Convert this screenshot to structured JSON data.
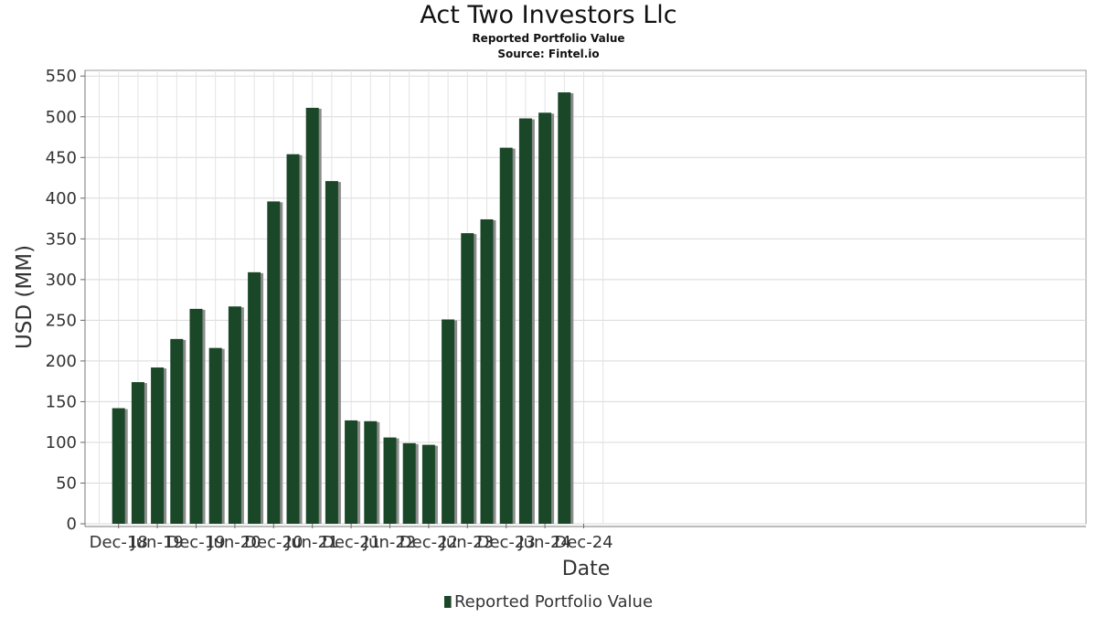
{
  "chart_data": {
    "type": "bar",
    "title": "Act Two Investors Llc",
    "subtitle": "Reported Portfolio Value",
    "source": "Source: Fintel.io",
    "xlabel": "Date",
    "ylabel": "USD (MM)",
    "ylim": [
      0,
      557
    ],
    "yticks": [
      0,
      50,
      100,
      150,
      200,
      250,
      300,
      350,
      400,
      450,
      500,
      550
    ],
    "xticks": [
      "Dec-18",
      "Jun-19",
      "Dec-19",
      "Jun-20",
      "Dec-20",
      "Jun-21",
      "Dec-21",
      "Jun-22",
      "Dec-22",
      "Jun-23",
      "Dec-23",
      "Jun-24",
      "Dec-24"
    ],
    "grid": true,
    "legend_position": "bottom",
    "bar_color": "#1a4727",
    "shadow_color": "#8c8c8c",
    "series": [
      {
        "name": "Reported Portfolio Value",
        "categories": [
          "Dec-18",
          "Mar-19",
          "Jun-19",
          "Sep-19",
          "Dec-19",
          "Mar-20",
          "Jun-20",
          "Sep-20",
          "Dec-20",
          "Mar-21",
          "Jun-21",
          "Sep-21",
          "Dec-21",
          "Mar-22",
          "Jun-22",
          "Sep-22",
          "Dec-22",
          "Mar-23",
          "Jun-23",
          "Sep-23",
          "Dec-23",
          "Mar-24",
          "Jun-24",
          "Sep-24"
        ],
        "values": [
          142,
          174,
          192,
          227,
          264,
          216,
          267,
          309,
          396,
          454,
          511,
          421,
          127,
          126,
          106,
          99,
          97,
          251,
          357,
          374,
          462,
          498,
          505,
          530
        ]
      }
    ]
  }
}
